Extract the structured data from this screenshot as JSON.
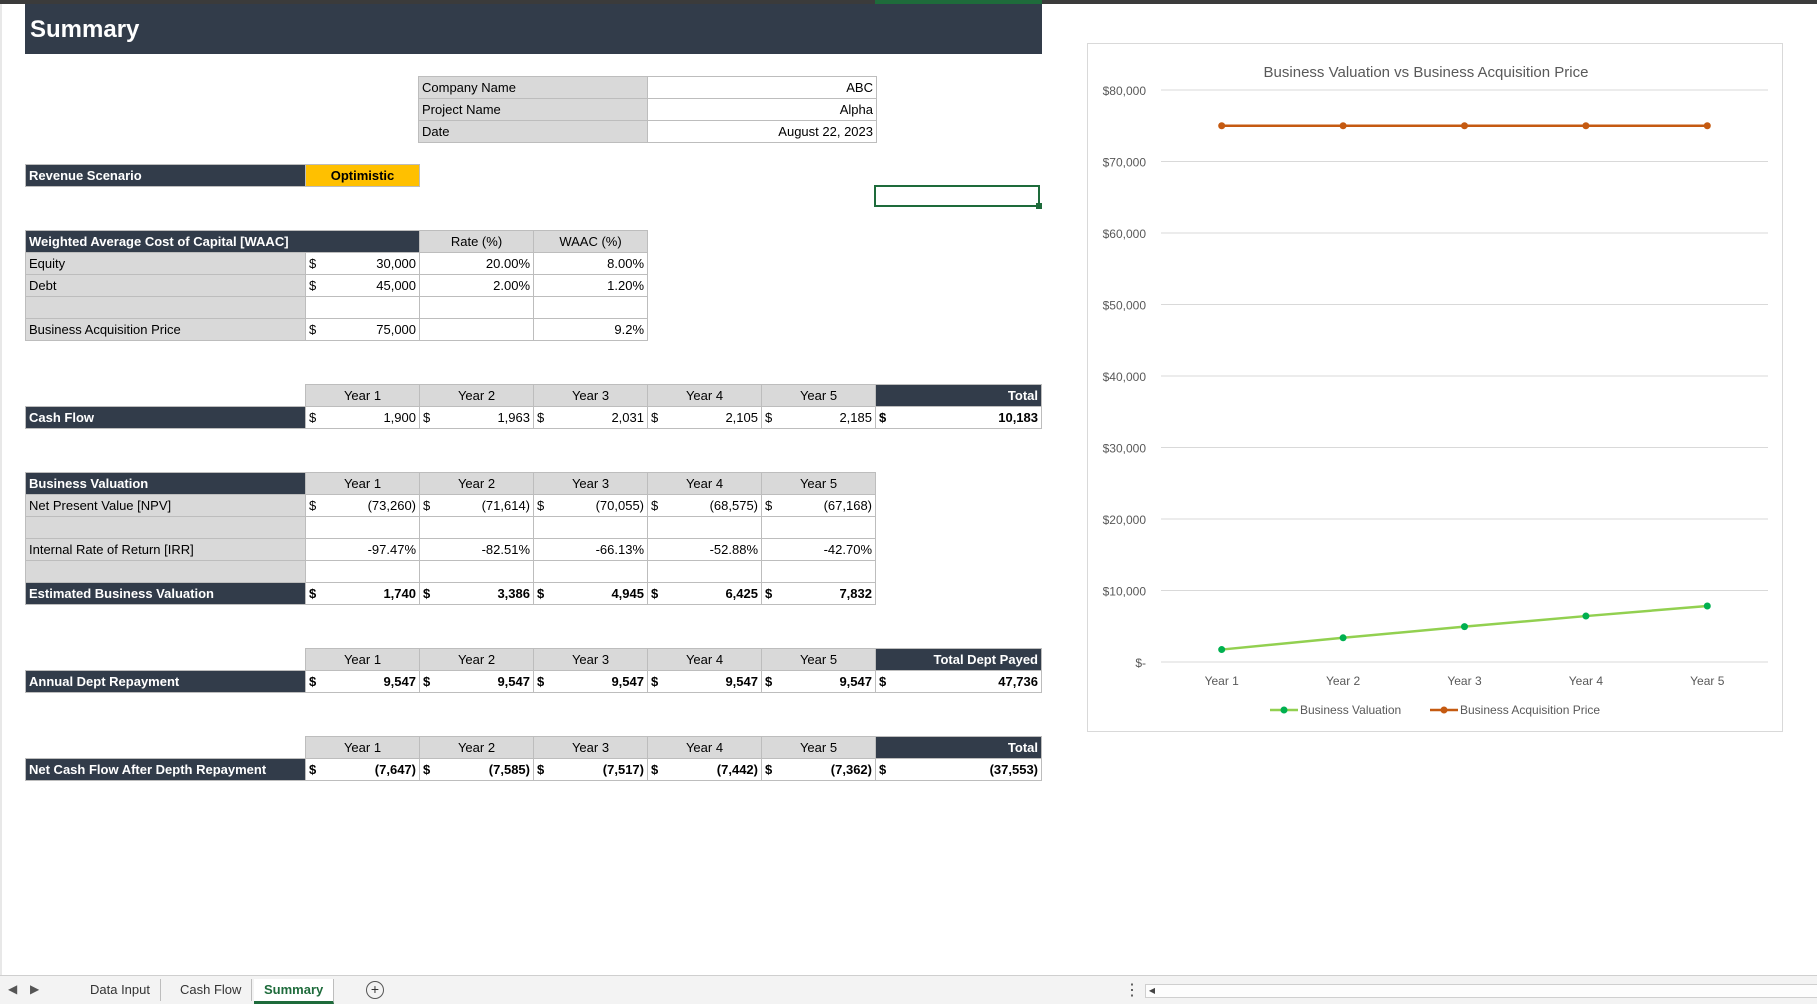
{
  "sheet_title": "Summary",
  "info": {
    "rows": [
      {
        "label": "Company Name",
        "value": "ABC"
      },
      {
        "label": "Project Name",
        "value": "Alpha"
      },
      {
        "label": "Date",
        "value": "August 22, 2023"
      }
    ]
  },
  "scenario": {
    "label": "Revenue Scenario",
    "value": "Optimistic"
  },
  "waac": {
    "header": "Weighted Average Cost of Capital [WAAC]",
    "col_rate": "Rate (%)",
    "col_waac": "WAAC (%)",
    "currency": "$",
    "rows": [
      {
        "label": "Equity",
        "amount": "30,000",
        "rate": "20.00%",
        "waac": "8.00%"
      },
      {
        "label": "Debt",
        "amount": "45,000",
        "rate": "2.00%",
        "waac": "1.20%"
      }
    ],
    "acq": {
      "label": "Business Acquisition Price",
      "amount": "75,000",
      "waac": "9.2%"
    }
  },
  "years": [
    "Year 1",
    "Year 2",
    "Year 3",
    "Year 4",
    "Year 5"
  ],
  "cashflow": {
    "label": "Cash Flow",
    "total_label": "Total",
    "values": [
      "1,900",
      "1,963",
      "2,031",
      "2,105",
      "2,185"
    ],
    "total": "10,183"
  },
  "valuation": {
    "header": "Business Valuation",
    "npv_label": "Net Present Value [NPV]",
    "npv": [
      "(73,260)",
      "(71,614)",
      "(70,055)",
      "(68,575)",
      "(67,168)"
    ],
    "irr_label": "Internal Rate of Return [IRR]",
    "irr": [
      "-97.47%",
      "-82.51%",
      "-66.13%",
      "-52.88%",
      "-42.70%"
    ],
    "est_label": "Estimated Business Valuation",
    "est": [
      "1,740",
      "3,386",
      "4,945",
      "6,425",
      "7,832"
    ]
  },
  "repayment": {
    "label": "Annual Dept Repayment",
    "total_label": "Total Dept Payed",
    "values": [
      "9,547",
      "9,547",
      "9,547",
      "9,547",
      "9,547"
    ],
    "total": "47,736"
  },
  "netcash": {
    "label": "Net Cash Flow After Depth Repayment",
    "total_label": "Total",
    "values": [
      "(7,647)",
      "(7,585)",
      "(7,517)",
      "(7,442)",
      "(7,362)"
    ],
    "total": "(37,553)"
  },
  "chart_data": {
    "type": "line",
    "title": "Business Valuation vs Business Acquisition Price",
    "categories": [
      "Year 1",
      "Year 2",
      "Year 3",
      "Year 4",
      "Year 5"
    ],
    "series": [
      {
        "name": "Business Valuation",
        "color": "#92d050",
        "marker": "#00b050",
        "values": [
          1740,
          3386,
          4945,
          6425,
          7832
        ]
      },
      {
        "name": "Business Acquisition Price",
        "color": "#c55a11",
        "marker": "#c55a11",
        "values": [
          75000,
          75000,
          75000,
          75000,
          75000
        ]
      }
    ],
    "ylim": [
      0,
      80000
    ],
    "yticks": [
      "$-",
      "$10,000",
      "$20,000",
      "$30,000",
      "$40,000",
      "$50,000",
      "$60,000",
      "$70,000",
      "$80,000"
    ],
    "grid": true,
    "legend": "bottom"
  },
  "tabs": [
    "Data Input",
    "Cash Flow",
    "Summary"
  ],
  "active_tab": "Summary"
}
